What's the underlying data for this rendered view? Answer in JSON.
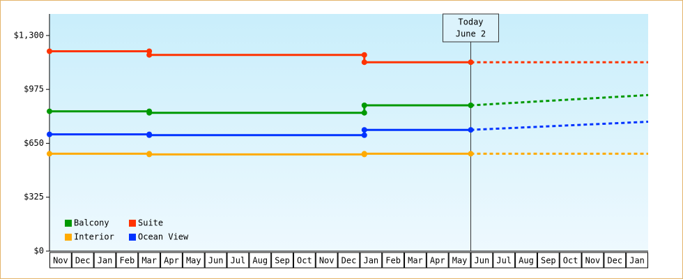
{
  "chart_data": {
    "type": "line",
    "categories": [
      "Nov",
      "Dec",
      "Jan",
      "Feb",
      "Mar",
      "Apr",
      "May",
      "Jun",
      "Jul",
      "Aug",
      "Sep",
      "Oct",
      "Nov",
      "Dec",
      "Jan",
      "Feb",
      "Mar",
      "Apr",
      "May",
      "Jun",
      "Jul",
      "Aug",
      "Sep",
      "Oct",
      "Nov",
      "Dec",
      "Jan"
    ],
    "x": [
      0,
      4.5,
      4.5,
      14.2,
      14.2,
      19
    ],
    "forecast_x": [
      19,
      27
    ],
    "xlim": [
      0,
      27
    ],
    "series": [
      {
        "name": "Balcony",
        "color": "#009900",
        "values": [
          843,
          843,
          834,
          834,
          879,
          879
        ],
        "forecast": [
          879,
          941
        ]
      },
      {
        "name": "Suite",
        "color": "#ff3300",
        "values": [
          1205,
          1205,
          1183,
          1183,
          1139,
          1139
        ],
        "forecast": [
          1139,
          1139
        ]
      },
      {
        "name": "Interior",
        "color": "#ffaa00",
        "values": [
          587,
          587,
          583,
          583,
          587,
          587
        ],
        "forecast": [
          587,
          587
        ]
      },
      {
        "name": "Ocean View",
        "color": "#0033ff",
        "values": [
          704,
          704,
          699,
          699,
          731,
          731
        ],
        "forecast": [
          731,
          780
        ]
      }
    ],
    "ylim": [
      0,
      1430
    ],
    "yticks": [
      {
        "value": 0,
        "label": "$0"
      },
      {
        "value": 325,
        "label": "$325"
      },
      {
        "value": 650,
        "label": "$650"
      },
      {
        "value": 975,
        "label": "$975"
      },
      {
        "value": 1300,
        "label": "$1,300"
      }
    ],
    "annotation": {
      "lines": [
        "Today",
        "June 2"
      ],
      "x": 19
    },
    "legend": "lower left"
  }
}
